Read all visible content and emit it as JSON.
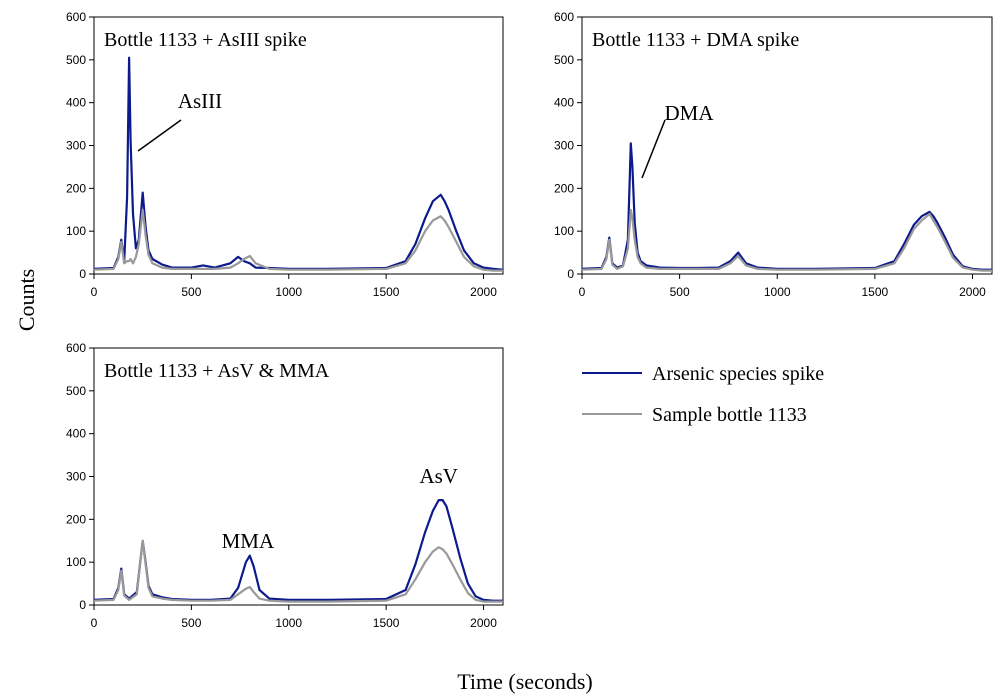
{
  "figure": {
    "ylabel": "Counts",
    "xlabel": "Time (seconds)"
  },
  "legend": {
    "items": [
      {
        "label": "Arsenic species spike",
        "color": "#0d1a8c"
      },
      {
        "label": "Sample bottle 1133",
        "color": "#999999"
      }
    ]
  },
  "chart_data": [
    {
      "type": "line",
      "title": "Bottle 1133 + AsIII spike",
      "xlim": [
        0,
        2100
      ],
      "ylim": [
        0,
        600
      ],
      "xticks": [
        0,
        500,
        1000,
        1500,
        2000
      ],
      "yticks": [
        0,
        100,
        200,
        300,
        400,
        500,
        600
      ],
      "annotations": [
        {
          "text": "AsIII",
          "x": 180,
          "y": 500
        }
      ],
      "series": [
        {
          "name": "Arsenic species spike",
          "x": [
            0,
            100,
            125,
            140,
            155,
            170,
            180,
            188,
            200,
            215,
            230,
            250,
            265,
            280,
            300,
            350,
            400,
            500,
            560,
            620,
            700,
            740,
            770,
            800,
            830,
            900,
            1000,
            1200,
            1500,
            1600,
            1650,
            1700,
            1740,
            1780,
            1800,
            1820,
            1860,
            1900,
            1950,
            2000,
            2050,
            2100
          ],
          "y": [
            12,
            14,
            40,
            80,
            30,
            180,
            505,
            310,
            140,
            60,
            80,
            190,
            110,
            55,
            35,
            22,
            15,
            15,
            20,
            15,
            25,
            40,
            30,
            25,
            15,
            14,
            12,
            12,
            14,
            30,
            70,
            130,
            170,
            185,
            170,
            150,
            100,
            55,
            25,
            15,
            12,
            10
          ]
        },
        {
          "name": "Sample bottle 1133",
          "x": [
            0,
            100,
            125,
            140,
            155,
            170,
            180,
            188,
            200,
            215,
            230,
            250,
            265,
            280,
            300,
            350,
            400,
            500,
            560,
            620,
            700,
            740,
            770,
            800,
            830,
            900,
            1000,
            1200,
            1500,
            1600,
            1650,
            1700,
            1740,
            1780,
            1800,
            1820,
            1860,
            1900,
            1950,
            2000,
            2050,
            2100
          ],
          "y": [
            10,
            12,
            35,
            75,
            25,
            30,
            30,
            35,
            25,
            40,
            70,
            150,
            90,
            45,
            25,
            15,
            12,
            12,
            12,
            12,
            15,
            25,
            35,
            42,
            25,
            12,
            10,
            10,
            12,
            25,
            55,
            100,
            125,
            135,
            125,
            110,
            75,
            40,
            18,
            10,
            8,
            8
          ]
        }
      ]
    },
    {
      "type": "line",
      "title": "Bottle 1133 + DMA spike",
      "xlim": [
        0,
        2100
      ],
      "ylim": [
        0,
        600
      ],
      "xticks": [
        0,
        500,
        1000,
        1500,
        2000
      ],
      "yticks": [
        0,
        100,
        200,
        300,
        400,
        500,
        600
      ],
      "annotations": [
        {
          "text": "DMA",
          "x": 255,
          "y": 305
        }
      ],
      "series": [
        {
          "name": "Arsenic species spike",
          "x": [
            0,
            100,
            125,
            140,
            155,
            180,
            210,
            235,
            250,
            258,
            270,
            285,
            300,
            330,
            400,
            500,
            600,
            700,
            760,
            800,
            840,
            900,
            1000,
            1200,
            1500,
            1600,
            1650,
            1700,
            1740,
            1780,
            1800,
            1820,
            1860,
            1900,
            1950,
            2000,
            2050,
            2100
          ],
          "y": [
            12,
            14,
            40,
            85,
            25,
            15,
            20,
            80,
            305,
            250,
            120,
            50,
            30,
            20,
            15,
            14,
            14,
            15,
            30,
            50,
            25,
            15,
            12,
            12,
            14,
            30,
            70,
            115,
            135,
            145,
            135,
            120,
            85,
            45,
            18,
            12,
            10,
            10
          ]
        },
        {
          "name": "Sample bottle 1133",
          "x": [
            0,
            100,
            125,
            140,
            155,
            180,
            210,
            235,
            250,
            258,
            270,
            285,
            300,
            330,
            400,
            500,
            600,
            700,
            760,
            800,
            840,
            900,
            1000,
            1200,
            1500,
            1600,
            1650,
            1700,
            1740,
            1780,
            1800,
            1820,
            1860,
            1900,
            1950,
            2000,
            2050,
            2100
          ],
          "y": [
            10,
            12,
            35,
            80,
            22,
            12,
            18,
            60,
            150,
            130,
            80,
            40,
            25,
            15,
            12,
            12,
            12,
            12,
            25,
            42,
            20,
            12,
            10,
            10,
            12,
            25,
            60,
            105,
            125,
            140,
            125,
            110,
            75,
            38,
            15,
            10,
            8,
            8
          ]
        }
      ]
    },
    {
      "type": "line",
      "title": "Bottle 1133 + AsV & MMA",
      "xlim": [
        0,
        2100
      ],
      "ylim": [
        0,
        600
      ],
      "xticks": [
        0,
        500,
        1000,
        1500,
        2000
      ],
      "yticks": [
        0,
        100,
        200,
        300,
        400,
        500,
        600
      ],
      "annotations": [
        {
          "text": "MMA",
          "x": 790,
          "y": 150
        },
        {
          "text": "AsV",
          "x": 1770,
          "y": 280
        }
      ],
      "series": [
        {
          "name": "Arsenic species spike",
          "x": [
            0,
            100,
            125,
            140,
            155,
            180,
            220,
            250,
            265,
            280,
            300,
            350,
            400,
            500,
            600,
            700,
            740,
            780,
            800,
            820,
            850,
            900,
            1000,
            1200,
            1500,
            1600,
            1650,
            1700,
            1740,
            1770,
            1790,
            1810,
            1840,
            1880,
            1920,
            1960,
            2000,
            2050,
            2100
          ],
          "y": [
            12,
            14,
            40,
            85,
            25,
            15,
            30,
            150,
            100,
            45,
            25,
            18,
            14,
            12,
            12,
            15,
            40,
            100,
            115,
            90,
            35,
            15,
            12,
            12,
            14,
            35,
            95,
            170,
            220,
            245,
            245,
            230,
            180,
            110,
            50,
            20,
            12,
            10,
            10
          ]
        },
        {
          "name": "Sample bottle 1133",
          "x": [
            0,
            100,
            125,
            140,
            155,
            180,
            220,
            250,
            265,
            280,
            300,
            350,
            400,
            500,
            600,
            700,
            740,
            780,
            800,
            820,
            850,
            900,
            1000,
            1200,
            1500,
            1600,
            1650,
            1700,
            1740,
            1770,
            1790,
            1810,
            1840,
            1880,
            1920,
            1960,
            2000,
            2050,
            2100
          ],
          "y": [
            10,
            12,
            35,
            80,
            22,
            12,
            25,
            150,
            95,
            40,
            20,
            15,
            12,
            10,
            10,
            12,
            25,
            38,
            42,
            30,
            15,
            10,
            8,
            8,
            10,
            25,
            60,
            100,
            125,
            135,
            130,
            120,
            95,
            60,
            28,
            12,
            8,
            8,
            8
          ]
        }
      ]
    }
  ]
}
